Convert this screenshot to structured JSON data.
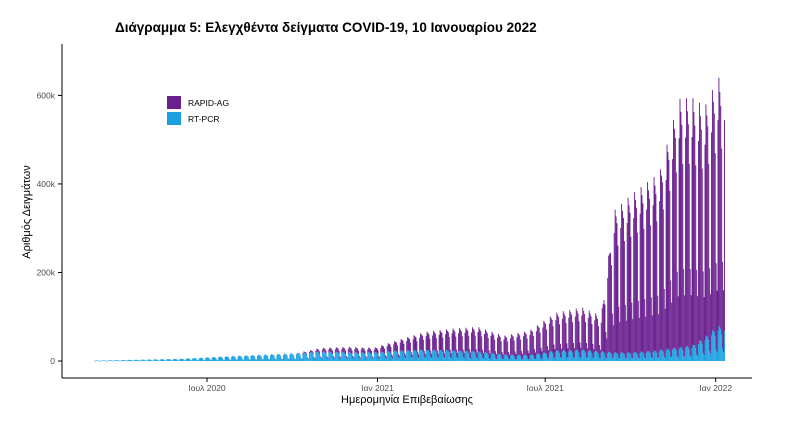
{
  "chart_data": {
    "type": "bar",
    "title": "Διάγραμμα 5: Ελεγχθέντα δείγματα COVID-19, 10 Ιανουαρίου 2022",
    "xlabel": "Ημερομηνία Επιβεβαίωσης",
    "ylabel": "Αριθμός Δειγμάτων",
    "x_range": [
      "2020-03-01",
      "2022-01-10"
    ],
    "ylim": [
      0,
      680000
    ],
    "x_ticks": [
      {
        "label": "Ιουλ 2020",
        "date": "2020-07-01"
      },
      {
        "label": "Ιαν 2021",
        "date": "2021-01-01"
      },
      {
        "label": "Ιουλ 2021",
        "date": "2021-07-01"
      },
      {
        "label": "Ιαν 2022",
        "date": "2022-01-01"
      }
    ],
    "y_ticks": [
      {
        "label": "0",
        "value": 0
      },
      {
        "label": "200k",
        "value": 200000
      },
      {
        "label": "400k",
        "value": 400000
      },
      {
        "label": "600k",
        "value": 600000
      }
    ],
    "stacked": true,
    "bar_granularity": "daily",
    "weekly_pattern": "lower totals on weekends",
    "grid": false,
    "legend_position": "top-left",
    "series": [
      {
        "name": "RAPID-AG",
        "color": "#6a1f8f",
        "weekly_peaks": [
          {
            "week_start": "2020-03-02",
            "value": 0
          },
          {
            "week_start": "2020-06-01",
            "value": 0
          },
          {
            "week_start": "2020-08-03",
            "value": 0
          },
          {
            "week_start": "2020-10-05",
            "value": 0
          },
          {
            "week_start": "2020-11-02",
            "value": 8000
          },
          {
            "week_start": "2020-11-30",
            "value": 12000
          },
          {
            "week_start": "2020-12-28",
            "value": 10000
          },
          {
            "week_start": "2021-01-25",
            "value": 25000
          },
          {
            "week_start": "2021-02-22",
            "value": 40000
          },
          {
            "week_start": "2021-03-22",
            "value": 48000
          },
          {
            "week_start": "2021-04-19",
            "value": 55000
          },
          {
            "week_start": "2021-05-17",
            "value": 42000
          },
          {
            "week_start": "2021-06-14",
            "value": 55000
          },
          {
            "week_start": "2021-07-12",
            "value": 85000
          },
          {
            "week_start": "2021-08-09",
            "value": 95000
          },
          {
            "week_start": "2021-08-30",
            "value": 80000
          },
          {
            "week_start": "2021-09-13",
            "value": 320000
          },
          {
            "week_start": "2021-10-04",
            "value": 360000
          },
          {
            "week_start": "2021-11-01",
            "value": 400000
          },
          {
            "week_start": "2021-11-22",
            "value": 560000
          },
          {
            "week_start": "2021-12-06",
            "value": 560000
          },
          {
            "week_start": "2021-12-20",
            "value": 520000
          },
          {
            "week_start": "2022-01-03",
            "value": 560000
          }
        ]
      },
      {
        "name": "RT-PCR",
        "color": "#1ba1e2",
        "weekly_peaks": [
          {
            "week_start": "2020-03-02",
            "value": 1000
          },
          {
            "week_start": "2020-06-01",
            "value": 5000
          },
          {
            "week_start": "2020-08-03",
            "value": 12000
          },
          {
            "week_start": "2020-10-05",
            "value": 18000
          },
          {
            "week_start": "2020-11-02",
            "value": 22000
          },
          {
            "week_start": "2020-11-30",
            "value": 20000
          },
          {
            "week_start": "2020-12-28",
            "value": 20000
          },
          {
            "week_start": "2021-01-25",
            "value": 24000
          },
          {
            "week_start": "2021-02-22",
            "value": 26000
          },
          {
            "week_start": "2021-03-22",
            "value": 25000
          },
          {
            "week_start": "2021-04-19",
            "value": 22000
          },
          {
            "week_start": "2021-05-17",
            "value": 15000
          },
          {
            "week_start": "2021-06-14",
            "value": 14000
          },
          {
            "week_start": "2021-07-12",
            "value": 24000
          },
          {
            "week_start": "2021-08-09",
            "value": 26000
          },
          {
            "week_start": "2021-08-30",
            "value": 22000
          },
          {
            "week_start": "2021-09-13",
            "value": 20000
          },
          {
            "week_start": "2021-10-04",
            "value": 20000
          },
          {
            "week_start": "2021-11-01",
            "value": 25000
          },
          {
            "week_start": "2021-11-22",
            "value": 32000
          },
          {
            "week_start": "2021-12-06",
            "value": 35000
          },
          {
            "week_start": "2021-12-20",
            "value": 55000
          },
          {
            "week_start": "2022-01-03",
            "value": 80000
          }
        ]
      }
    ]
  }
}
